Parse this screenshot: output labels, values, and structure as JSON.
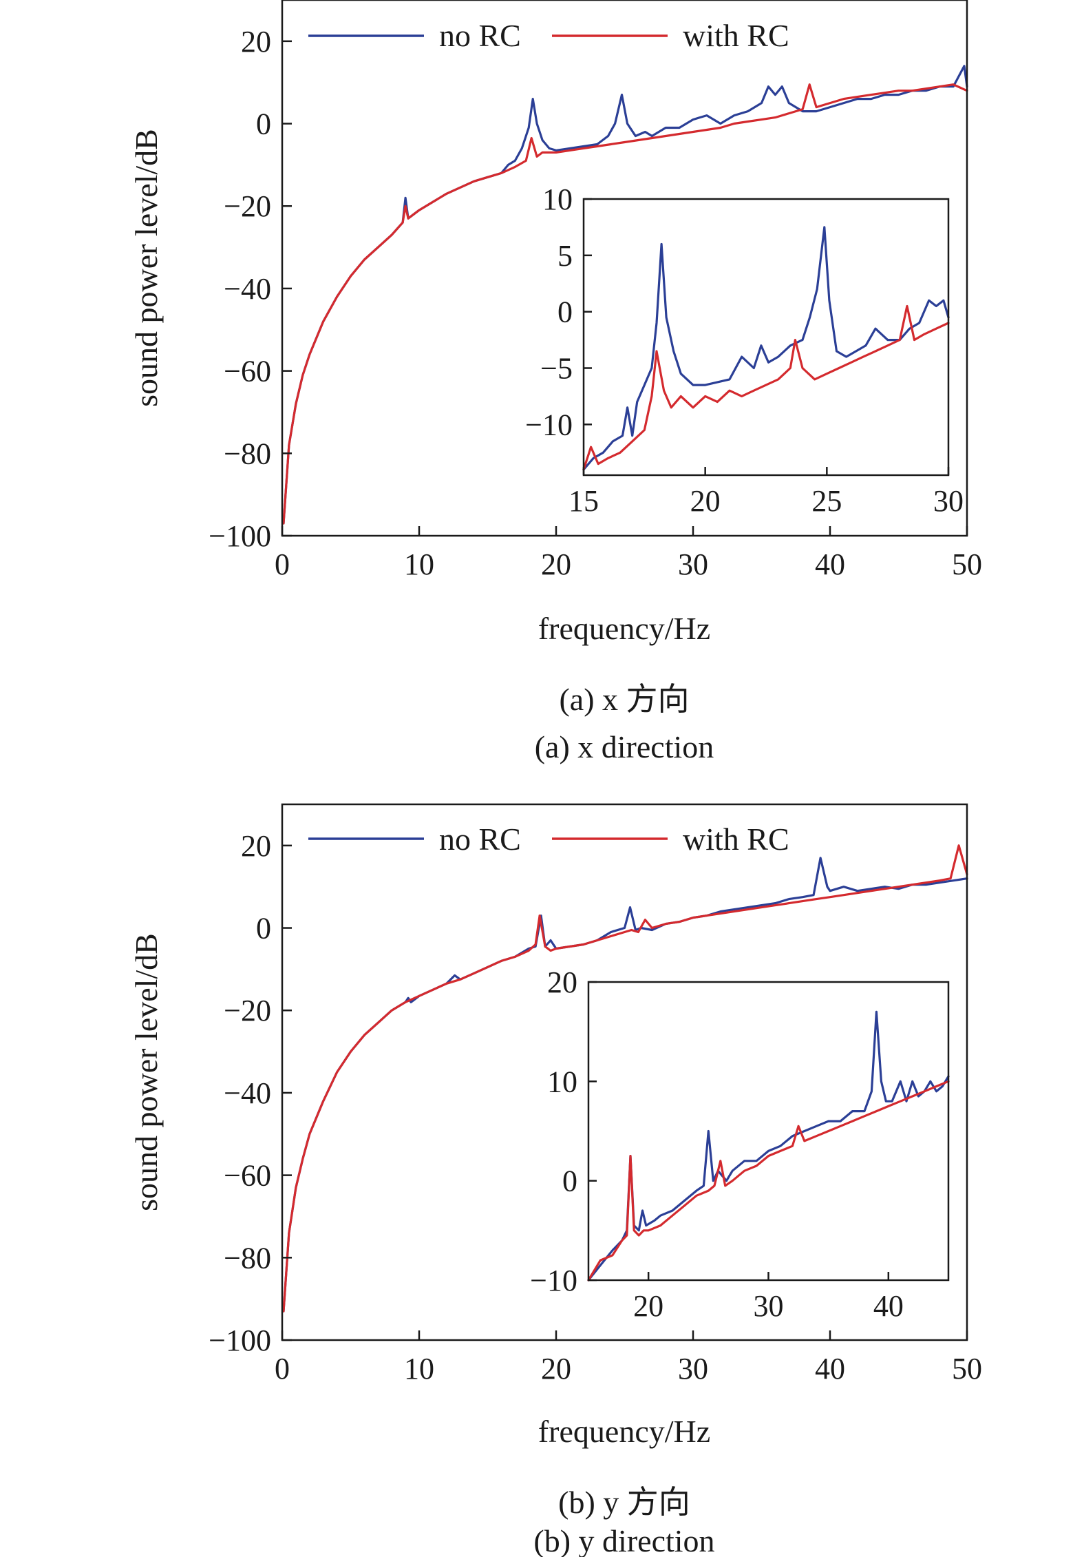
{
  "colors": {
    "no_rc": "#2b3f96",
    "with_rc": "#d42a2e",
    "axis": "#1a1a1a"
  },
  "chart_data": [
    {
      "id": "x",
      "type": "line",
      "caption_cn": "(a) x 方向",
      "caption_en": "(a) x direction",
      "xlabel": "frequency/Hz",
      "ylabel": "sound power level/dB",
      "xlim": [
        0,
        50
      ],
      "ylim": [
        -100,
        30
      ],
      "xticks": [
        0,
        10,
        20,
        30,
        40,
        50
      ],
      "yticks": [
        -100,
        -80,
        -60,
        -40,
        -20,
        0,
        20
      ],
      "legend": {
        "position": "top",
        "entries": [
          "no RC",
          "with RC"
        ]
      },
      "series": [
        {
          "name": "no RC",
          "x": [
            0.1,
            0.5,
            1,
            1.5,
            2,
            3,
            4,
            5,
            6,
            7,
            8,
            8.8,
            9.0,
            9.2,
            10,
            11,
            12,
            13,
            14,
            15,
            16,
            16.5,
            17,
            17.5,
            18.0,
            18.3,
            18.6,
            19,
            19.5,
            20,
            21,
            22,
            23,
            23.8,
            24.3,
            24.8,
            25.2,
            25.8,
            26.5,
            27,
            28,
            29,
            30,
            31,
            32,
            33,
            34,
            35,
            35.5,
            36,
            36.5,
            37,
            38,
            39,
            40,
            41,
            42,
            43,
            44,
            45,
            46,
            47,
            48,
            49,
            49.8,
            50
          ],
          "y": [
            -97,
            -78,
            -68,
            -61,
            -56,
            -48,
            -42,
            -37,
            -33,
            -30,
            -27,
            -24,
            -18,
            -23,
            -21,
            -19,
            -17,
            -15.5,
            -14,
            -13,
            -12,
            -10,
            -9,
            -6,
            -1,
            6,
            0,
            -4,
            -6,
            -6.5,
            -6,
            -5.5,
            -5,
            -3,
            0,
            7,
            0,
            -3,
            -2,
            -3,
            -1,
            -1,
            1,
            2,
            0,
            2,
            3,
            5,
            9,
            7,
            9,
            5,
            3,
            3,
            4,
            5,
            6,
            6,
            7,
            7,
            8,
            8,
            9,
            9,
            14,
            9
          ]
        },
        {
          "name": "with RC",
          "x": [
            0.1,
            0.5,
            1,
            1.5,
            2,
            3,
            4,
            5,
            6,
            7,
            8,
            8.8,
            9.0,
            9.2,
            10,
            11,
            12,
            13,
            14,
            15,
            16,
            17,
            17.8,
            18.2,
            18.6,
            19,
            20,
            21,
            22,
            23,
            24,
            25,
            26,
            27,
            28,
            29,
            30,
            31,
            32,
            33,
            34,
            35,
            36,
            37,
            38,
            38.5,
            39,
            40,
            41,
            42,
            43,
            44,
            45,
            46,
            47,
            48,
            49,
            50
          ],
          "y": [
            -97,
            -78,
            -68,
            -61,
            -56,
            -48,
            -42,
            -37,
            -33,
            -30,
            -27,
            -24,
            -20,
            -23,
            -21,
            -19,
            -17,
            -15.5,
            -14,
            -13,
            -12,
            -10.5,
            -9,
            -3.5,
            -8,
            -7,
            -7,
            -6.5,
            -6,
            -5.5,
            -5,
            -4.5,
            -4,
            -3.5,
            -3,
            -2.5,
            -2,
            -1.5,
            -1,
            0,
            0.5,
            1,
            1.5,
            2.5,
            3.5,
            9.5,
            4,
            5,
            6,
            6.5,
            7,
            7.5,
            8,
            8,
            8.5,
            9,
            9.5,
            8
          ]
        }
      ],
      "inset": {
        "xlim": [
          15,
          30
        ],
        "ylim": [
          -14.5,
          10
        ],
        "xticks": [
          15,
          20,
          25,
          30
        ],
        "yticks": [
          -10,
          -5,
          0,
          5,
          10
        ],
        "series": [
          {
            "name": "no RC",
            "x": [
              15,
              15.4,
              15.8,
              16.2,
              16.6,
              16.8,
              17.0,
              17.2,
              17.5,
              17.8,
              18.0,
              18.2,
              18.4,
              18.7,
              19.0,
              19.5,
              20,
              21,
              21.5,
              22,
              22.3,
              22.6,
              23,
              23.5,
              24,
              24.3,
              24.6,
              24.9,
              25.1,
              25.4,
              25.8,
              26.2,
              26.6,
              27,
              27.5,
              28,
              28.4,
              28.8,
              29.2,
              29.5,
              29.8,
              30
            ],
            "y": [
              -14,
              -13,
              -12.5,
              -11.5,
              -11,
              -8.5,
              -11,
              -8,
              -6.5,
              -5,
              -1,
              6,
              -0.5,
              -3.5,
              -5.5,
              -6.5,
              -6.5,
              -6,
              -4,
              -5,
              -3,
              -4.5,
              -4,
              -3,
              -2.5,
              -0.5,
              2,
              7.5,
              1,
              -3.5,
              -4,
              -3.5,
              -3,
              -1.5,
              -2.5,
              -2.5,
              -1.5,
              -1,
              1,
              0.5,
              1,
              -0.5
            ]
          },
          {
            "name": "with RC",
            "x": [
              15,
              15.3,
              15.6,
              16,
              16.5,
              17,
              17.5,
              17.8,
              18.0,
              18.3,
              18.6,
              19,
              19.5,
              20,
              20.5,
              21,
              21.5,
              22,
              22.5,
              23,
              23.5,
              23.7,
              24,
              24.5,
              25,
              25.5,
              26,
              26.5,
              27,
              27.5,
              28,
              28.3,
              28.6,
              29,
              29.5,
              30
            ],
            "y": [
              -14,
              -12,
              -13.5,
              -13,
              -12.5,
              -11.5,
              -10.5,
              -7.5,
              -3.5,
              -7,
              -8.5,
              -7.5,
              -8.5,
              -7.5,
              -8,
              -7,
              -7.5,
              -7,
              -6.5,
              -6,
              -5,
              -2.5,
              -5,
              -6,
              -5.5,
              -5,
              -4.5,
              -4,
              -3.5,
              -3,
              -2.5,
              0.5,
              -2.5,
              -2,
              -1.5,
              -1
            ]
          }
        ]
      }
    },
    {
      "id": "y",
      "type": "line",
      "caption_cn": "(b) y 方向",
      "caption_en": "(b) y direction",
      "xlabel": "frequency/Hz",
      "ylabel": "sound power level/dB",
      "xlim": [
        0,
        50
      ],
      "ylim": [
        -100,
        30
      ],
      "xticks": [
        0,
        10,
        20,
        30,
        40,
        50
      ],
      "yticks": [
        -100,
        -80,
        -60,
        -40,
        -20,
        0,
        20
      ],
      "legend": {
        "position": "top",
        "entries": [
          "no RC",
          "with RC"
        ]
      },
      "series": [
        {
          "name": "no RC",
          "x": [
            0.1,
            0.5,
            1,
            1.5,
            2,
            3,
            4,
            5,
            6,
            7,
            8,
            9,
            9.2,
            9.4,
            10,
            11,
            12,
            12.6,
            13,
            14,
            15,
            16,
            17,
            18,
            18.5,
            18.9,
            19.2,
            19.6,
            20,
            21,
            22,
            23,
            24,
            25,
            25.4,
            25.8,
            26.2,
            27,
            28,
            29,
            30,
            31,
            32,
            33,
            34,
            35,
            36,
            37,
            38,
            38.8,
            39.3,
            39.8,
            40,
            41,
            42,
            43,
            44,
            45,
            46,
            47,
            48,
            49,
            50
          ],
          "y": [
            -93,
            -74,
            -63,
            -56,
            -50,
            -42,
            -35,
            -30,
            -26,
            -23,
            -20,
            -18,
            -17,
            -18,
            -16.5,
            -15,
            -13.5,
            -11.5,
            -12.5,
            -11,
            -9.5,
            -8,
            -7,
            -5,
            -4.5,
            3,
            -4.5,
            -3,
            -5,
            -4.5,
            -4,
            -3,
            -1,
            0,
            5,
            -0.5,
            0,
            -0.5,
            1,
            1.5,
            2.5,
            3,
            4,
            4.5,
            5,
            5.5,
            6,
            7,
            7.5,
            8,
            17,
            10,
            9,
            10,
            9,
            9.5,
            10,
            9.5,
            10.5,
            10.5,
            11,
            11.5,
            12
          ]
        },
        {
          "name": "with RC",
          "x": [
            0.1,
            0.5,
            1,
            1.5,
            2,
            3,
            4,
            5,
            6,
            7,
            8,
            9,
            10,
            11,
            12,
            13,
            14,
            15,
            16,
            17,
            18,
            18.5,
            18.8,
            19.2,
            19.6,
            20,
            21,
            22,
            23,
            24,
            25,
            25.5,
            26,
            26.5,
            27,
            28,
            29,
            30,
            31,
            32,
            33,
            34,
            35,
            36,
            37,
            38,
            39,
            40,
            41,
            42,
            43,
            44,
            45,
            46,
            47,
            48,
            48.8,
            49.4,
            50
          ],
          "y": [
            -93,
            -74,
            -63,
            -56,
            -50,
            -42,
            -35,
            -30,
            -26,
            -23,
            -20,
            -18,
            -16.5,
            -15,
            -13.5,
            -12.5,
            -11,
            -9.5,
            -8,
            -7,
            -5.5,
            -4,
            3,
            -4.5,
            -5.5,
            -5,
            -4.5,
            -4,
            -3,
            -2,
            -1,
            -0.5,
            -1,
            2,
            0,
            1,
            1.5,
            2.5,
            3,
            3.5,
            4,
            4.5,
            5,
            5.5,
            6,
            6.5,
            7,
            7.5,
            8,
            8.5,
            9,
            9.5,
            10,
            10.5,
            11,
            11.5,
            12,
            20,
            13
          ]
        }
      ],
      "inset": {
        "xlim": [
          15,
          45
        ],
        "ylim": [
          -10,
          20
        ],
        "xticks": [
          20,
          30,
          40
        ],
        "yticks": [
          -10,
          0,
          10,
          20
        ],
        "series": [
          {
            "name": "no RC",
            "x": [
              15,
              16,
              17,
              17.8,
              18.2,
              18.5,
              18.8,
              19.2,
              19.5,
              19.8,
              20.5,
              21,
              22,
              23,
              24,
              24.6,
              25.0,
              25.4,
              25.8,
              26.5,
              27,
              28,
              29,
              30,
              31,
              32,
              33,
              34,
              35,
              36,
              37,
              38,
              38.6,
              39.0,
              39.4,
              39.8,
              40.3,
              41,
              41.5,
              42,
              42.5,
              43,
              43.5,
              44,
              44.5,
              45
            ],
            "y": [
              -10,
              -8.5,
              -7,
              -6,
              -5,
              2.5,
              -4.5,
              -5,
              -3,
              -4.5,
              -4,
              -3.5,
              -3,
              -2,
              -1,
              -0.5,
              5,
              0,
              1,
              0,
              1,
              2,
              2,
              3,
              3.5,
              4.5,
              5,
              5.5,
              6,
              6,
              7,
              7,
              9,
              17,
              10,
              8,
              8,
              10,
              8,
              10,
              8.5,
              9,
              10,
              9,
              9.5,
              10.5
            ]
          },
          {
            "name": "with RC",
            "x": [
              15,
              16,
              17,
              17.8,
              18.2,
              18.5,
              18.8,
              19.2,
              19.6,
              20,
              21,
              22,
              23,
              24,
              25,
              25.5,
              26.0,
              26.4,
              27,
              28,
              29,
              30,
              31,
              32,
              32.5,
              33,
              34,
              35,
              36,
              37,
              38,
              39,
              40,
              41,
              42,
              43,
              44,
              45
            ],
            "y": [
              -10,
              -8,
              -7.5,
              -6,
              -5.5,
              2.5,
              -5,
              -5.5,
              -5,
              -5,
              -4.5,
              -3.5,
              -2.5,
              -1.5,
              -1,
              -0.5,
              2,
              -0.5,
              0,
              1,
              1.5,
              2.5,
              3,
              3.5,
              5.5,
              4,
              4.5,
              5,
              5.5,
              6,
              6.5,
              7,
              7.5,
              8,
              8.5,
              9,
              9.5,
              10
            ]
          }
        ]
      }
    }
  ]
}
